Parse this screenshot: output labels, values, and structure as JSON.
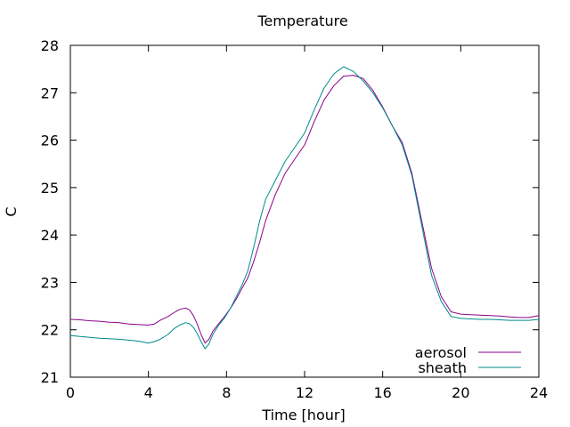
{
  "chart_data": {
    "type": "line",
    "title": "Temperature",
    "xlabel": "Time [hour]",
    "ylabel": "C",
    "xlim": [
      0,
      24
    ],
    "ylim": [
      21,
      28
    ],
    "xticks": [
      0,
      4,
      8,
      12,
      16,
      20,
      24
    ],
    "yticks": [
      21,
      22,
      23,
      24,
      25,
      26,
      27,
      28
    ],
    "grid": false,
    "legend_position": "bottom-right",
    "series": [
      {
        "name": "aerosol",
        "color": "#8b008b",
        "x": [
          0.0,
          0.5,
          1.0,
          1.5,
          2.0,
          2.5,
          3.0,
          3.5,
          4.0,
          4.3,
          4.6,
          5.0,
          5.3,
          5.6,
          5.9,
          6.1,
          6.3,
          6.5,
          6.7,
          6.9,
          7.1,
          7.3,
          7.6,
          7.9,
          8.2,
          8.5,
          8.8,
          9.1,
          9.4,
          9.7,
          10.0,
          10.5,
          11.0,
          11.5,
          12.0,
          12.5,
          13.0,
          13.5,
          14.0,
          14.5,
          15.0,
          15.5,
          16.0,
          16.5,
          17.0,
          17.5,
          18.0,
          18.5,
          19.0,
          19.5,
          20.0,
          20.5,
          21.0,
          21.5,
          22.0,
          22.5,
          23.0,
          23.5,
          24.0
        ],
        "y": [
          22.22,
          22.21,
          22.19,
          22.18,
          22.16,
          22.15,
          22.12,
          22.11,
          22.1,
          22.12,
          22.2,
          22.28,
          22.36,
          22.43,
          22.46,
          22.42,
          22.3,
          22.12,
          21.9,
          21.72,
          21.8,
          21.97,
          22.13,
          22.28,
          22.45,
          22.65,
          22.88,
          23.1,
          23.45,
          23.85,
          24.3,
          24.85,
          25.3,
          25.6,
          25.9,
          26.4,
          26.85,
          27.15,
          27.35,
          27.37,
          27.3,
          27.05,
          26.7,
          26.3,
          25.95,
          25.3,
          24.3,
          23.3,
          22.7,
          22.38,
          22.33,
          22.32,
          22.31,
          22.3,
          22.29,
          22.27,
          22.26,
          22.26,
          22.3
        ]
      },
      {
        "name": "sheath",
        "color": "#008b8b",
        "x": [
          0.0,
          0.5,
          1.0,
          1.5,
          2.0,
          2.5,
          3.0,
          3.5,
          4.0,
          4.3,
          4.6,
          5.0,
          5.3,
          5.6,
          5.9,
          6.1,
          6.3,
          6.5,
          6.7,
          6.9,
          7.1,
          7.3,
          7.6,
          7.9,
          8.2,
          8.5,
          8.8,
          9.1,
          9.4,
          9.7,
          10.0,
          10.5,
          11.0,
          11.5,
          12.0,
          12.5,
          13.0,
          13.5,
          14.0,
          14.5,
          15.0,
          15.5,
          16.0,
          16.5,
          17.0,
          17.5,
          18.0,
          18.5,
          19.0,
          19.5,
          20.0,
          20.5,
          21.0,
          21.5,
          22.0,
          22.5,
          23.0,
          23.5,
          24.0
        ],
        "y": [
          21.88,
          21.86,
          21.84,
          21.82,
          21.81,
          21.8,
          21.78,
          21.76,
          21.72,
          21.75,
          21.8,
          21.9,
          22.02,
          22.1,
          22.15,
          22.13,
          22.05,
          21.92,
          21.75,
          21.6,
          21.7,
          21.9,
          22.1,
          22.25,
          22.45,
          22.7,
          22.95,
          23.25,
          23.75,
          24.3,
          24.75,
          25.15,
          25.55,
          25.85,
          26.15,
          26.65,
          27.1,
          27.4,
          27.55,
          27.45,
          27.25,
          27.0,
          26.68,
          26.3,
          25.9,
          25.25,
          24.2,
          23.15,
          22.6,
          22.28,
          22.24,
          22.23,
          22.22,
          22.22,
          22.21,
          22.2,
          22.2,
          22.2,
          22.22
        ]
      }
    ]
  }
}
